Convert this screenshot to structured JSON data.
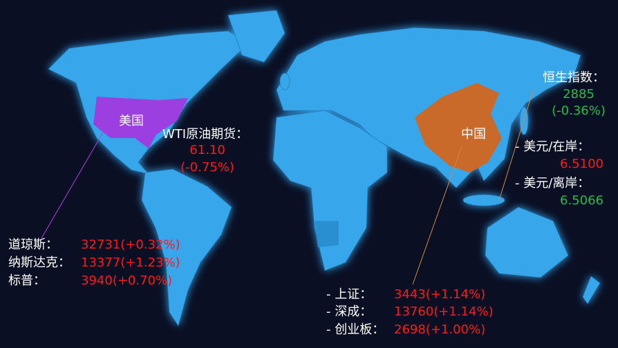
{
  "regions": {
    "usa": "美国",
    "china": "中国"
  },
  "wti": {
    "label": "WTI原油期货：",
    "price": "61.10",
    "change": "(-0.75%)"
  },
  "us_indices": [
    {
      "name": "道琼斯：",
      "value": "32731(+0.32%)"
    },
    {
      "name": "纳斯达克：",
      "value": "13377(+1.23%)"
    },
    {
      "name": "标普：",
      "value": "3940(+0.70%)"
    }
  ],
  "hsi": {
    "label": "恒生指数：",
    "price": "2885",
    "change": "(-0.36%)"
  },
  "fx": [
    {
      "label": "- 美元/在岸：",
      "value": "6.5100"
    },
    {
      "label": "- 美元/离岸：",
      "value": "6.5066"
    }
  ],
  "cn_indices": [
    {
      "name": "- 上证：",
      "value": "3443(+1.14%)"
    },
    {
      "name": "- 深成：",
      "value": "13760(+1.14%)"
    },
    {
      "name": "- 创业板：",
      "value": "2698(+1.00%)"
    }
  ]
}
